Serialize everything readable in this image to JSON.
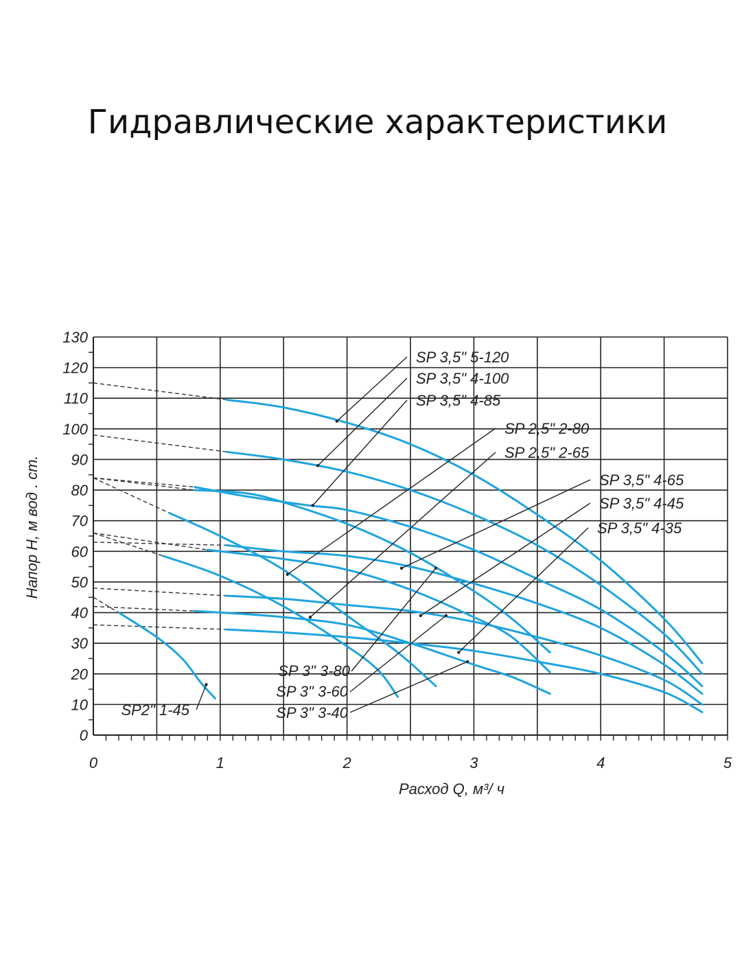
{
  "title": "Гидравлические характеристики",
  "chart_data": {
    "type": "line",
    "title": "Гидравлические характеристики",
    "xlabel": "Расход  Q,  м³/ ч",
    "ylabel": "Напор  H,  м вод . ст.",
    "xlim": [
      0,
      5
    ],
    "ylim": [
      0,
      130
    ],
    "x_ticks": [
      "0",
      "1",
      "2",
      "3",
      "4",
      "5"
    ],
    "y_ticks": [
      "0",
      "10",
      "20",
      "30",
      "40",
      "50",
      "60",
      "70",
      "80",
      "90",
      "100",
      "110",
      "120",
      "130"
    ],
    "grid": true,
    "colors": {
      "curve": "#1ea4df",
      "dashed": "#333333",
      "grid": "#222222"
    },
    "series": [
      {
        "name": "SP 3,5\" 5-120",
        "zero_head": 115,
        "points": [
          [
            1.05,
            109.5
          ],
          [
            1.5,
            107
          ],
          [
            2.0,
            102
          ],
          [
            2.5,
            95
          ],
          [
            3.0,
            85
          ],
          [
            3.5,
            72
          ],
          [
            4.0,
            57
          ],
          [
            4.5,
            38
          ],
          [
            4.8,
            23.5
          ]
        ]
      },
      {
        "name": "SP 3,5\" 4-100",
        "zero_head": 98,
        "points": [
          [
            1.05,
            92.5
          ],
          [
            1.5,
            90
          ],
          [
            2.0,
            86
          ],
          [
            2.5,
            80
          ],
          [
            3.0,
            72
          ],
          [
            3.5,
            62
          ],
          [
            4.0,
            49
          ],
          [
            4.5,
            33
          ],
          [
            4.8,
            20
          ]
        ]
      },
      {
        "name": "SP 3,5\" 4-85",
        "zero_head": 84,
        "points": [
          [
            0.8,
            81
          ],
          [
            1.2,
            78
          ],
          [
            1.7,
            75
          ],
          [
            2.0,
            73.5
          ],
          [
            2.5,
            68
          ],
          [
            3.0,
            60.5
          ],
          [
            3.5,
            51
          ],
          [
            4.0,
            41
          ],
          [
            4.5,
            27
          ],
          [
            4.8,
            16
          ]
        ]
      },
      {
        "name": "SP 2,5\" 2-80",
        "zero_head": 84,
        "points": [
          [
            0.6,
            72.5
          ],
          [
            1.0,
            65
          ],
          [
            1.5,
            54
          ],
          [
            2.0,
            39
          ],
          [
            2.4,
            27
          ],
          [
            2.7,
            16
          ]
        ]
      },
      {
        "name": "SP 2,5\" 2-65",
        "zero_head": 66,
        "points": [
          [
            0.55,
            58.5
          ],
          [
            1.0,
            52
          ],
          [
            1.5,
            42
          ],
          [
            2.0,
            29
          ],
          [
            2.25,
            21
          ],
          [
            2.4,
            12.5
          ]
        ]
      },
      {
        "name": "SP 3,5\" 4-65",
        "zero_head": 63,
        "points": [
          [
            1.05,
            62
          ],
          [
            1.5,
            60
          ],
          [
            2.0,
            58.5
          ],
          [
            2.5,
            55
          ],
          [
            3.0,
            49.5
          ],
          [
            3.5,
            43
          ],
          [
            4.0,
            35
          ],
          [
            4.5,
            23
          ],
          [
            4.8,
            13.5
          ]
        ]
      },
      {
        "name": "SP 3,5\" 4-45",
        "zero_head": 48,
        "points": [
          [
            1.05,
            45.5
          ],
          [
            1.5,
            44.5
          ],
          [
            2.0,
            42.5
          ],
          [
            2.5,
            40.5
          ],
          [
            3.0,
            37
          ],
          [
            3.5,
            32
          ],
          [
            4.0,
            26
          ],
          [
            4.5,
            18
          ],
          [
            4.8,
            10
          ]
        ]
      },
      {
        "name": "SP 3,5\" 4-35",
        "zero_head": 36,
        "points": [
          [
            1.05,
            34.5
          ],
          [
            1.5,
            33.5
          ],
          [
            2.0,
            32
          ],
          [
            2.5,
            30
          ],
          [
            3.0,
            27.5
          ],
          [
            3.5,
            24
          ],
          [
            4.0,
            20
          ],
          [
            4.5,
            14
          ],
          [
            4.8,
            7.5
          ]
        ]
      },
      {
        "name": "SP 3\" 3-80",
        "zero_head": 84,
        "points": [
          [
            0.8,
            80
          ],
          [
            1.2,
            79
          ],
          [
            1.5,
            76
          ],
          [
            2.0,
            69
          ],
          [
            2.5,
            59.5
          ],
          [
            3.0,
            47
          ],
          [
            3.3,
            38
          ],
          [
            3.6,
            27
          ]
        ]
      },
      {
        "name": "SP 3\" 3-60",
        "zero_head": 66,
        "points": [
          [
            0.9,
            60.5
          ],
          [
            1.5,
            57.5
          ],
          [
            2.0,
            54
          ],
          [
            2.5,
            47.5
          ],
          [
            3.0,
            38.5
          ],
          [
            3.3,
            32
          ],
          [
            3.6,
            20.5
          ]
        ]
      },
      {
        "name": "SP 3\" 3-40",
        "zero_head": 42,
        "points": [
          [
            0.8,
            40.5
          ],
          [
            1.2,
            39.5
          ],
          [
            1.5,
            38.5
          ],
          [
            2.0,
            36
          ],
          [
            2.5,
            30
          ],
          [
            3.0,
            23
          ],
          [
            3.3,
            19
          ],
          [
            3.6,
            13.5
          ]
        ]
      },
      {
        "name": "SP2\" 1-45",
        "zero_head": 45,
        "points": [
          [
            0.2,
            40
          ],
          [
            0.5,
            32
          ],
          [
            0.7,
            25
          ],
          [
            0.85,
            17
          ],
          [
            0.96,
            12
          ]
        ]
      }
    ]
  }
}
